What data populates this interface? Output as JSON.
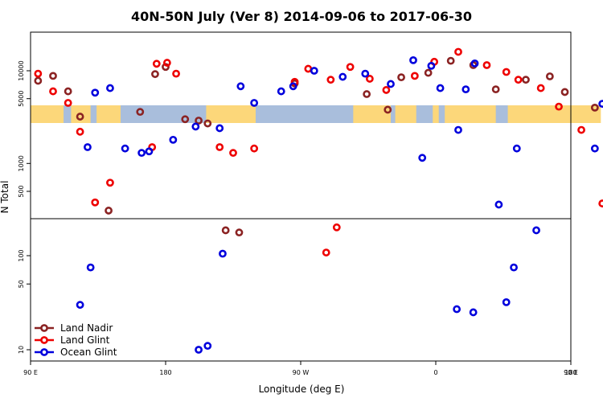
{
  "chart_data": {
    "type": "scatter",
    "title": "40N-50N July (Ver 8)   2014-09-06 to 2017-06-30",
    "xlabel": "Longitude (deg E)",
    "ylabel": "N Total",
    "x_range_deg_e": [
      90,
      450
    ],
    "x_tick_labels": [
      "90 E",
      "180",
      "90 W",
      "0",
      "90 E",
      "180"
    ],
    "x_tick_values": [
      90,
      180,
      270,
      360,
      450,
      540
    ],
    "y_scale": "log",
    "upper_y_tick_labels": [
      "10000",
      "5000",
      "1000",
      "500"
    ],
    "lower_y_tick_labels": [
      "100",
      "50",
      "10"
    ],
    "legend": {
      "position": "bottom-left",
      "entries": [
        "Land Nadir",
        "Land Glint",
        "Ocean Glint"
      ]
    },
    "colors": {
      "Land Nadir": "#8b2323",
      "Land Glint": "#ee0000",
      "Ocean Glint": "#0000dd",
      "land": "#fcd77a",
      "ocean": "#a9bedc"
    },
    "series": [
      {
        "name": "Land Nadir",
        "upper": [
          [
            95,
            7800
          ],
          [
            105,
            8800
          ],
          [
            115,
            6000
          ],
          [
            123,
            3200
          ],
          [
            142,
            310
          ],
          [
            163,
            3600
          ],
          [
            173,
            9200
          ],
          [
            180,
            11000
          ],
          [
            193,
            3000
          ],
          [
            202,
            2900
          ],
          [
            208,
            2700
          ],
          [
            220,
            190
          ],
          [
            229,
            180
          ],
          [
            266,
            7300
          ],
          [
            314,
            5600
          ],
          [
            328,
            3800
          ],
          [
            337,
            8500
          ],
          [
            355,
            9500
          ],
          [
            370,
            12800
          ],
          [
            385,
            11500
          ],
          [
            400,
            6300
          ],
          [
            420,
            8000
          ],
          [
            436,
            8700
          ],
          [
            446,
            5900
          ],
          [
            466,
            4000
          ],
          [
            482,
            320
          ]
        ],
        "lower": []
      },
      {
        "name": "Land Glint",
        "upper": [
          [
            95,
            9300
          ],
          [
            105,
            6000
          ],
          [
            115,
            4500
          ],
          [
            123,
            2200
          ],
          [
            133,
            380
          ],
          [
            143,
            620
          ],
          [
            171,
            1500
          ],
          [
            174,
            11900
          ],
          [
            181,
            12200
          ],
          [
            187,
            9300
          ],
          [
            216,
            1500
          ],
          [
            225,
            1300
          ],
          [
            239,
            1450
          ],
          [
            266,
            7600
          ],
          [
            275,
            10500
          ],
          [
            290,
            8000
          ],
          [
            303,
            11000
          ],
          [
            316,
            8200
          ],
          [
            327,
            6200
          ],
          [
            346,
            8800
          ],
          [
            359,
            12500
          ],
          [
            375,
            16000
          ],
          [
            394,
            11500
          ],
          [
            407,
            9700
          ],
          [
            415,
            8000
          ],
          [
            430,
            6500
          ],
          [
            442,
            4100
          ],
          [
            457,
            2300
          ],
          [
            471,
            370
          ],
          [
            481,
            620
          ]
        ],
        "lower": [
          [
            287,
            108
          ],
          [
            294,
            200
          ]
        ]
      },
      {
        "name": "Ocean Glint",
        "upper": [
          [
            128,
            1500
          ],
          [
            133,
            5800
          ],
          [
            143,
            6500
          ],
          [
            153,
            1450
          ],
          [
            164,
            1300
          ],
          [
            169,
            1350
          ],
          [
            185,
            1800
          ],
          [
            200,
            2500
          ],
          [
            216,
            2400
          ],
          [
            230,
            6800
          ],
          [
            239,
            4500
          ],
          [
            257,
            6000
          ],
          [
            265,
            6800
          ],
          [
            279,
            10000
          ],
          [
            298,
            8600
          ],
          [
            313,
            9300
          ],
          [
            330,
            7200
          ],
          [
            345,
            13000
          ],
          [
            351,
            1150
          ],
          [
            357,
            11300
          ],
          [
            363,
            6500
          ],
          [
            375,
            2300
          ],
          [
            380,
            6300
          ],
          [
            386,
            12000
          ],
          [
            402,
            360
          ],
          [
            414,
            1450
          ],
          [
            427,
            190
          ],
          [
            466,
            1450
          ],
          [
            471,
            4400
          ],
          [
            488,
            7000
          ],
          [
            500,
            1450
          ],
          [
            507,
            1300
          ]
        ],
        "lower": [
          [
            123,
            30
          ],
          [
            130,
            75
          ],
          [
            202,
            10
          ],
          [
            208,
            11
          ],
          [
            218,
            105
          ],
          [
            374,
            27
          ],
          [
            385,
            25
          ],
          [
            407,
            32
          ],
          [
            412,
            75
          ]
        ]
      }
    ]
  }
}
